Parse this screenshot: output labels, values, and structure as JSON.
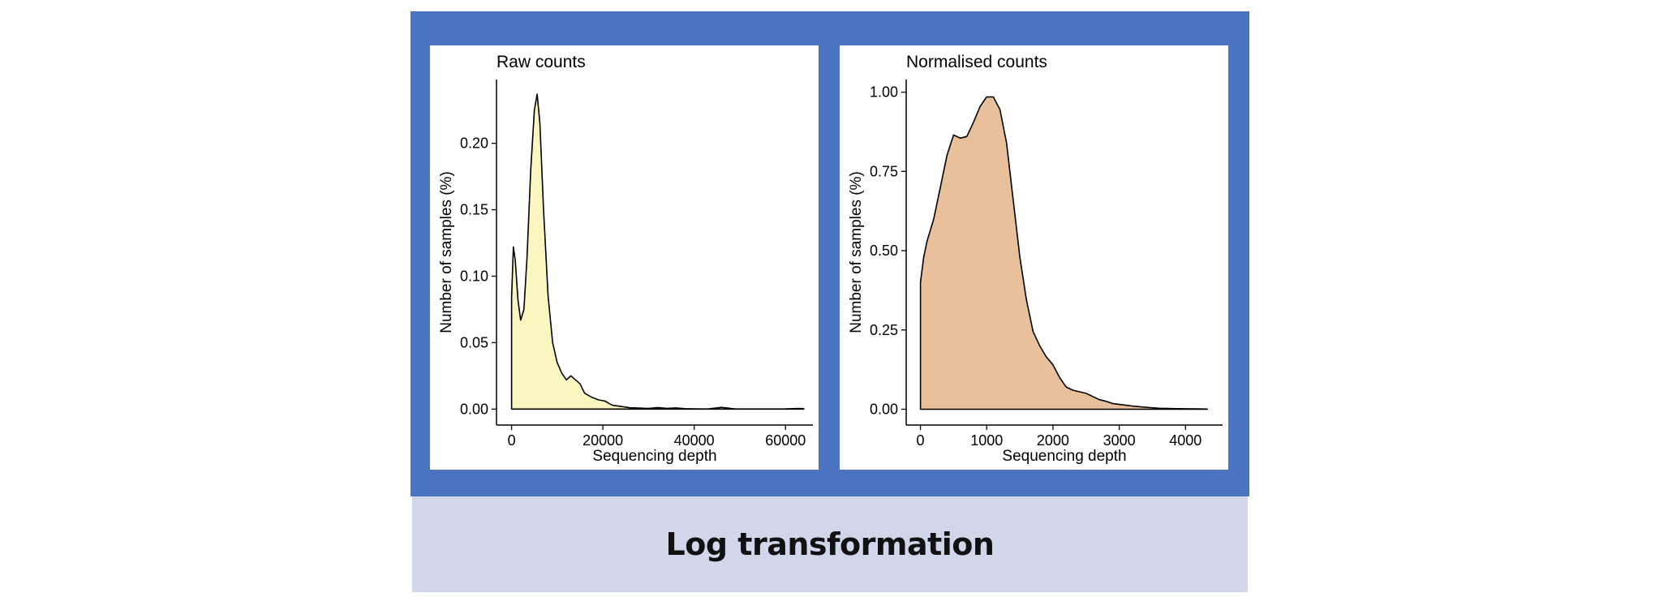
{
  "colors": {
    "frame": "#4c73c0",
    "caption_band": "#d1d7ea",
    "raw_fill": "#fbf5c0",
    "norm_fill": "#e8c09c"
  },
  "caption": "Log transformation",
  "chart_data": [
    {
      "type": "area",
      "title": "Raw counts",
      "xlabel": "Sequencing depth",
      "ylabel": "Number of samples (%)",
      "xlim": [
        -3300,
        66000
      ],
      "ylim": [
        -0.012,
        0.248
      ],
      "xticks": [
        0,
        20000,
        40000,
        60000
      ],
      "xtick_labels": [
        "0",
        "20000",
        "40000",
        "60000"
      ],
      "yticks": [
        0,
        0.05,
        0.1,
        0.15,
        0.2
      ],
      "ytick_labels": [
        "0.00",
        "0.05",
        "0.10",
        "0.15",
        "0.20"
      ],
      "fill": "#fbf5c0",
      "grid": false,
      "points": [
        [
          0,
          0.084
        ],
        [
          400,
          0.122
        ],
        [
          800,
          0.112
        ],
        [
          1400,
          0.082
        ],
        [
          2000,
          0.067
        ],
        [
          2700,
          0.075
        ],
        [
          3400,
          0.115
        ],
        [
          4200,
          0.18
        ],
        [
          5000,
          0.225
        ],
        [
          5600,
          0.237
        ],
        [
          6200,
          0.215
        ],
        [
          7000,
          0.15
        ],
        [
          8000,
          0.085
        ],
        [
          9000,
          0.05
        ],
        [
          10000,
          0.035
        ],
        [
          11000,
          0.027
        ],
        [
          12000,
          0.022
        ],
        [
          13000,
          0.025
        ],
        [
          14000,
          0.022
        ],
        [
          15000,
          0.019
        ],
        [
          16000,
          0.012
        ],
        [
          17500,
          0.009
        ],
        [
          19000,
          0.007
        ],
        [
          20500,
          0.006
        ],
        [
          22000,
          0.003
        ],
        [
          24000,
          0.002
        ],
        [
          26000,
          0.001
        ],
        [
          28000,
          0.0008
        ],
        [
          30000,
          0.0005
        ],
        [
          32000,
          0.0012
        ],
        [
          34000,
          0.0006
        ],
        [
          36000,
          0.0009
        ],
        [
          38000,
          0.0003
        ],
        [
          40000,
          0.0002
        ],
        [
          43000,
          0.0001
        ],
        [
          46000,
          0.0013
        ],
        [
          49000,
          0.0001
        ],
        [
          55000,
          0.0001
        ],
        [
          60000,
          0.0002
        ],
        [
          63000,
          0.0005
        ],
        [
          64000,
          0.0003
        ]
      ]
    },
    {
      "type": "area",
      "title": "Normalised counts",
      "xlabel": "Sequencing depth",
      "ylabel": "Number of samples (%)",
      "xlim": [
        -215,
        4560
      ],
      "ylim": [
        -0.05,
        1.04
      ],
      "xticks": [
        0,
        1000,
        2000,
        3000,
        4000
      ],
      "xtick_labels": [
        "0",
        "1000",
        "2000",
        "3000",
        "4000"
      ],
      "yticks": [
        0,
        0.25,
        0.5,
        0.75,
        1.0
      ],
      "ytick_labels": [
        "0.00",
        "0.25",
        "0.50",
        "0.75",
        "1.00"
      ],
      "fill": "#e8c09c",
      "grid": false,
      "points": [
        [
          0,
          0.4
        ],
        [
          50,
          0.48
        ],
        [
          100,
          0.53
        ],
        [
          200,
          0.6
        ],
        [
          300,
          0.7
        ],
        [
          400,
          0.8
        ],
        [
          500,
          0.865
        ],
        [
          600,
          0.855
        ],
        [
          700,
          0.86
        ],
        [
          800,
          0.905
        ],
        [
          900,
          0.955
        ],
        [
          1000,
          0.985
        ],
        [
          1100,
          0.985
        ],
        [
          1200,
          0.945
        ],
        [
          1300,
          0.84
        ],
        [
          1400,
          0.66
        ],
        [
          1500,
          0.48
        ],
        [
          1600,
          0.345
        ],
        [
          1700,
          0.245
        ],
        [
          1800,
          0.2
        ],
        [
          1900,
          0.165
        ],
        [
          2000,
          0.14
        ],
        [
          2100,
          0.1
        ],
        [
          2200,
          0.07
        ],
        [
          2300,
          0.06
        ],
        [
          2400,
          0.055
        ],
        [
          2500,
          0.05
        ],
        [
          2600,
          0.04
        ],
        [
          2700,
          0.03
        ],
        [
          2800,
          0.025
        ],
        [
          2900,
          0.018
        ],
        [
          3000,
          0.015
        ],
        [
          3200,
          0.01
        ],
        [
          3400,
          0.006
        ],
        [
          3600,
          0.003
        ],
        [
          3800,
          0.002
        ],
        [
          4000,
          0.0015
        ],
        [
          4200,
          0.001
        ],
        [
          4330,
          0.0005
        ]
      ]
    }
  ]
}
